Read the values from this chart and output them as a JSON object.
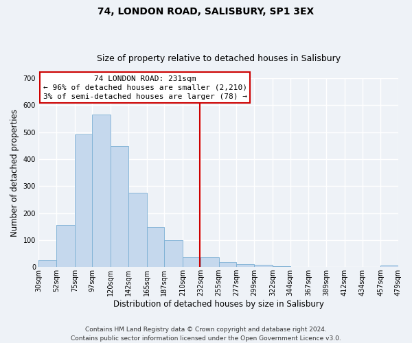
{
  "title": "74, LONDON ROAD, SALISBURY, SP1 3EX",
  "subtitle": "Size of property relative to detached houses in Salisbury",
  "xlabel": "Distribution of detached houses by size in Salisbury",
  "ylabel": "Number of detached properties",
  "bar_edges": [
    30,
    52,
    75,
    97,
    120,
    142,
    165,
    187,
    210,
    232,
    255,
    277,
    299,
    322,
    344,
    367,
    389,
    412,
    434,
    457,
    479
  ],
  "bar_heights": [
    25,
    155,
    492,
    565,
    447,
    275,
    147,
    99,
    37,
    35,
    17,
    10,
    7,
    3,
    0,
    0,
    0,
    0,
    0,
    5
  ],
  "bar_color": "#c5d8ed",
  "bar_edgecolor": "#7bafd4",
  "property_size": 231,
  "vline_color": "#cc0000",
  "annotation_line1": "74 LONDON ROAD: 231sqm",
  "annotation_line2": "← 96% of detached houses are smaller (2,210)",
  "annotation_line3": "3% of semi-detached houses are larger (78) →",
  "annotation_bbox_facecolor": "#ffffff",
  "annotation_bbox_edgecolor": "#cc0000",
  "ylim": [
    0,
    700
  ],
  "yticks": [
    0,
    100,
    200,
    300,
    400,
    500,
    600,
    700
  ],
  "tick_labels": [
    "30sqm",
    "52sqm",
    "75sqm",
    "97sqm",
    "120sqm",
    "142sqm",
    "165sqm",
    "187sqm",
    "210sqm",
    "232sqm",
    "255sqm",
    "277sqm",
    "299sqm",
    "322sqm",
    "344sqm",
    "367sqm",
    "389sqm",
    "412sqm",
    "434sqm",
    "457sqm",
    "479sqm"
  ],
  "footnote1": "Contains HM Land Registry data © Crown copyright and database right 2024.",
  "footnote2": "Contains public sector information licensed under the Open Government Licence v3.0.",
  "background_color": "#eef2f7",
  "grid_color": "#ffffff",
  "title_fontsize": 10,
  "subtitle_fontsize": 9,
  "axis_label_fontsize": 8.5,
  "tick_fontsize": 7,
  "annotation_fontsize": 8,
  "footnote_fontsize": 6.5
}
